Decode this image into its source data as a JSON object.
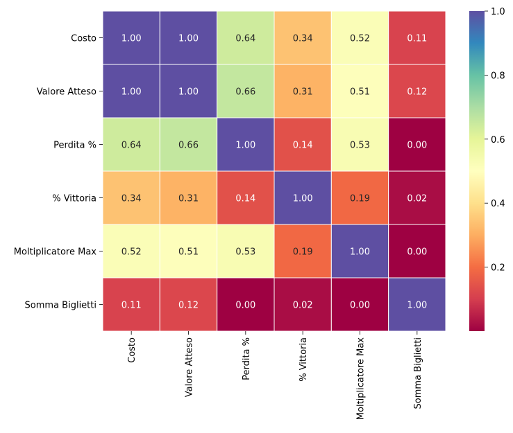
{
  "chart_data": {
    "type": "heatmap",
    "title": "",
    "xlabel": "",
    "ylabel": "",
    "row_labels": [
      "Costo",
      "Valore Atteso",
      "Perdita %",
      "% Vittoria",
      "Moltiplicatore Max",
      "Somma Biglietti"
    ],
    "col_labels": [
      "Costo",
      "Valore Atteso",
      "Perdita %",
      "% Vittoria",
      "Moltiplicatore Max",
      "Somma Biglietti"
    ],
    "values": [
      [
        1.0,
        1.0,
        0.64,
        0.34,
        0.52,
        0.11
      ],
      [
        1.0,
        1.0,
        0.66,
        0.31,
        0.51,
        0.12
      ],
      [
        0.64,
        0.66,
        1.0,
        0.14,
        0.53,
        0.0
      ],
      [
        0.34,
        0.31,
        0.14,
        1.0,
        0.19,
        0.02
      ],
      [
        0.52,
        0.51,
        0.53,
        0.19,
        1.0,
        0.0
      ],
      [
        0.11,
        0.12,
        0.0,
        0.02,
        0.0,
        1.0
      ]
    ],
    "annotation_format": "0.00",
    "colormap": "Spectral",
    "colorbar": {
      "min": 0.0,
      "max": 1.0,
      "ticks": [
        0.2,
        0.4,
        0.6,
        0.8,
        1.0
      ],
      "tick_labels": [
        "0.2",
        "0.4",
        "0.6",
        "0.8",
        "1.0"
      ]
    },
    "cell_line_color": "#ffffff"
  }
}
